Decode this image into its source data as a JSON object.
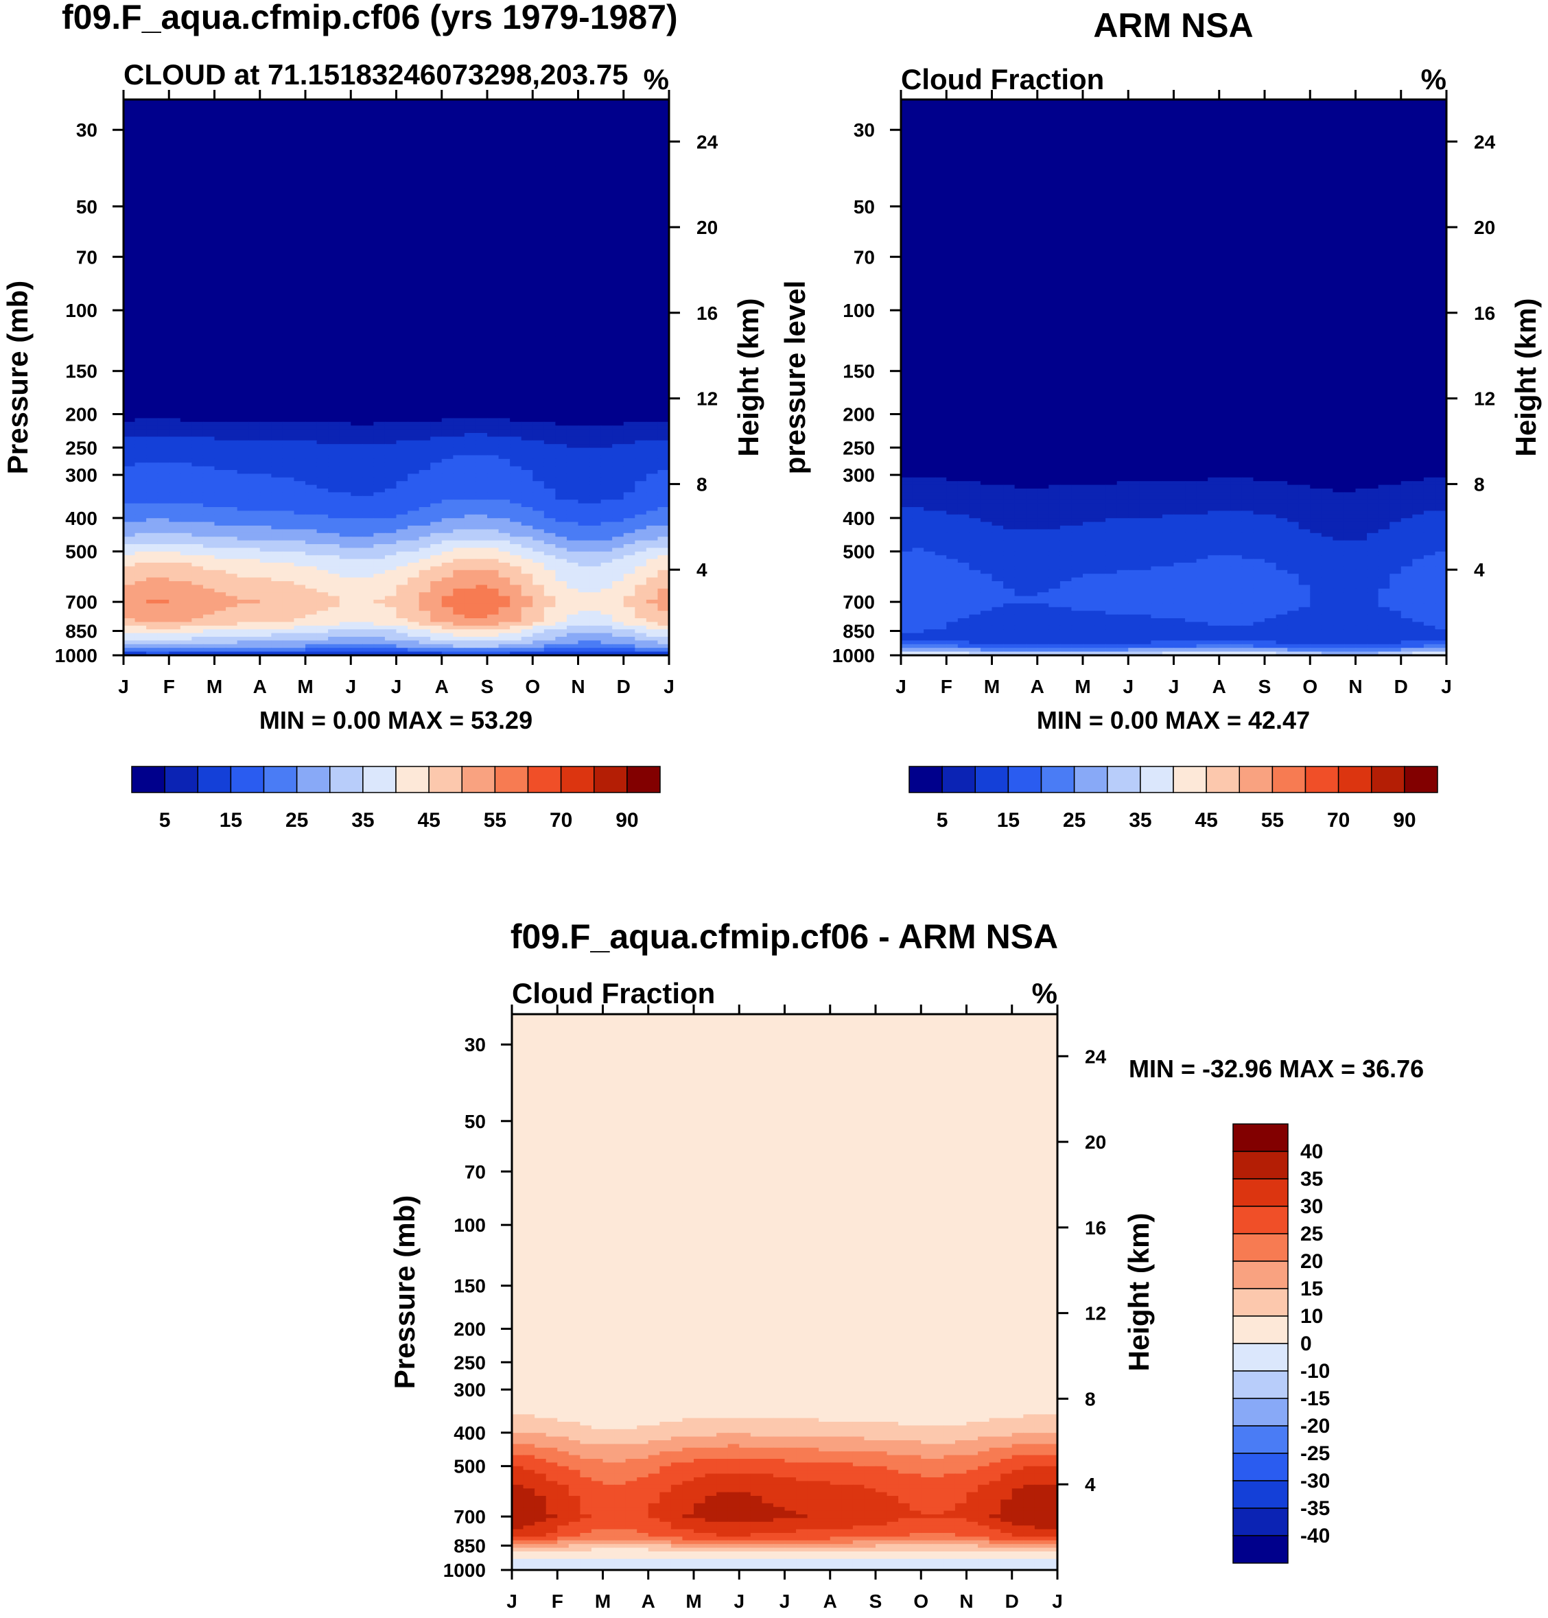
{
  "colors": {
    "background": "#ffffff",
    "abs_scale": [
      "#00008c",
      "#0b23b4",
      "#1440d8",
      "#2a5cf0",
      "#4a7cf5",
      "#88a9f7",
      "#b8cdfa",
      "#dbe7fc",
      "#fde8d8",
      "#fcc8ad",
      "#f9a280",
      "#f77b52",
      "#f04f28",
      "#dc3510",
      "#b41e05",
      "#820000"
    ],
    "diff_scale": [
      "#00008c",
      "#0b23b4",
      "#1440d8",
      "#2a5cf0",
      "#4a7cf5",
      "#88a9f7",
      "#b8cdfa",
      "#dbe7fc",
      "#fde8d8",
      "#fcc8ad",
      "#f9a280",
      "#f77b52",
      "#f04f28",
      "#dc3510",
      "#b41e05",
      "#820000"
    ]
  },
  "chart_data": [
    {
      "type": "heatmap",
      "title": "f09.F_aqua.cfmip.cf06 (yrs 1979-1987)",
      "subtitle_left": "CLOUD at 71.15183246073298,203.75",
      "subtitle_right": "%",
      "ylabel": "Pressure (mb)",
      "ylabel_right": "Height (km)",
      "x_ticks": [
        "J",
        "F",
        "M",
        "A",
        "M",
        "J",
        "J",
        "A",
        "S",
        "O",
        "N",
        "D",
        "J"
      ],
      "y_ticks": [
        30,
        50,
        70,
        100,
        150,
        200,
        250,
        300,
        400,
        500,
        700,
        850,
        1000
      ],
      "y_ticks_right": [
        24,
        20,
        16,
        12,
        8,
        4
      ],
      "stats": "MIN =    0.00 MAX =  53.29",
      "colorbar_labels": [
        "5",
        "15",
        "25",
        "35",
        "45",
        "55",
        "70",
        "90"
      ],
      "levels": [
        5,
        10,
        15,
        20,
        25,
        30,
        35,
        40,
        45,
        50,
        55,
        60,
        70,
        80,
        90
      ],
      "profile": [
        [
          30,
          2
        ],
        [
          150,
          2
        ],
        [
          200,
          3
        ],
        [
          250,
          12
        ],
        [
          300,
          15
        ],
        [
          350,
          17
        ],
        [
          400,
          22
        ],
        [
          450,
          28
        ],
        [
          500,
          36
        ],
        [
          550,
          42
        ],
        [
          650,
          48
        ],
        [
          700,
          50
        ],
        [
          800,
          46
        ],
        [
          850,
          38
        ],
        [
          900,
          32
        ],
        [
          950,
          25
        ],
        [
          1000,
          10
        ]
      ]
    },
    {
      "type": "heatmap",
      "title": "ARM NSA",
      "subtitle_left": "Cloud Fraction",
      "subtitle_right": "%",
      "ylabel": "pressure level",
      "ylabel_right": "Height (km)",
      "x_ticks": [
        "J",
        "F",
        "M",
        "A",
        "M",
        "J",
        "J",
        "A",
        "S",
        "O",
        "N",
        "D",
        "J"
      ],
      "y_ticks": [
        30,
        50,
        70,
        100,
        150,
        200,
        250,
        300,
        400,
        500,
        700,
        850,
        1000
      ],
      "y_ticks_right": [
        24,
        20,
        16,
        12,
        8,
        4
      ],
      "stats": "MIN =    0.00 MAX =  42.47",
      "colorbar_labels": [
        "5",
        "15",
        "25",
        "35",
        "45",
        "55",
        "70",
        "90"
      ],
      "levels": [
        5,
        10,
        15,
        20,
        25,
        30,
        35,
        40,
        45,
        50,
        55,
        60,
        70,
        80,
        90
      ],
      "profile": [
        [
          30,
          2
        ],
        [
          250,
          2
        ],
        [
          300,
          4
        ],
        [
          350,
          7
        ],
        [
          400,
          10
        ],
        [
          500,
          13
        ],
        [
          600,
          16
        ],
        [
          700,
          17
        ],
        [
          800,
          14
        ],
        [
          900,
          12
        ],
        [
          950,
          20
        ],
        [
          990,
          35
        ],
        [
          1000,
          30
        ]
      ]
    },
    {
      "type": "heatmap",
      "title": "f09.F_aqua.cfmip.cf06 - ARM NSA",
      "subtitle_left": "Cloud Fraction",
      "subtitle_right": "%",
      "ylabel": "Pressure (mb)",
      "ylabel_right": "Height (km)",
      "x_ticks": [
        "J",
        "F",
        "M",
        "A",
        "M",
        "J",
        "J",
        "A",
        "S",
        "O",
        "N",
        "D",
        "J"
      ],
      "y_ticks": [
        30,
        50,
        70,
        100,
        150,
        200,
        250,
        300,
        400,
        500,
        700,
        850,
        1000
      ],
      "y_ticks_right": [
        24,
        20,
        16,
        12,
        8,
        4
      ],
      "stats": "MIN = -32.96 MAX =  36.76",
      "colorbar_labels": [
        "40",
        "35",
        "30",
        "25",
        "20",
        "15",
        "10",
        "0",
        "-10",
        "-15",
        "-20",
        "-25",
        "-30",
        "-35",
        "-40"
      ],
      "levels": [
        -40,
        -35,
        -30,
        -25,
        -20,
        -15,
        -10,
        0,
        10,
        15,
        20,
        25,
        30,
        35,
        40
      ],
      "profile": [
        [
          30,
          2
        ],
        [
          220,
          3
        ],
        [
          300,
          5
        ],
        [
          350,
          8
        ],
        [
          400,
          13
        ],
        [
          450,
          20
        ],
        [
          500,
          26
        ],
        [
          600,
          32
        ],
        [
          700,
          34
        ],
        [
          800,
          27
        ],
        [
          850,
          16
        ],
        [
          900,
          6
        ],
        [
          950,
          -2
        ],
        [
          1000,
          -6
        ]
      ]
    }
  ]
}
